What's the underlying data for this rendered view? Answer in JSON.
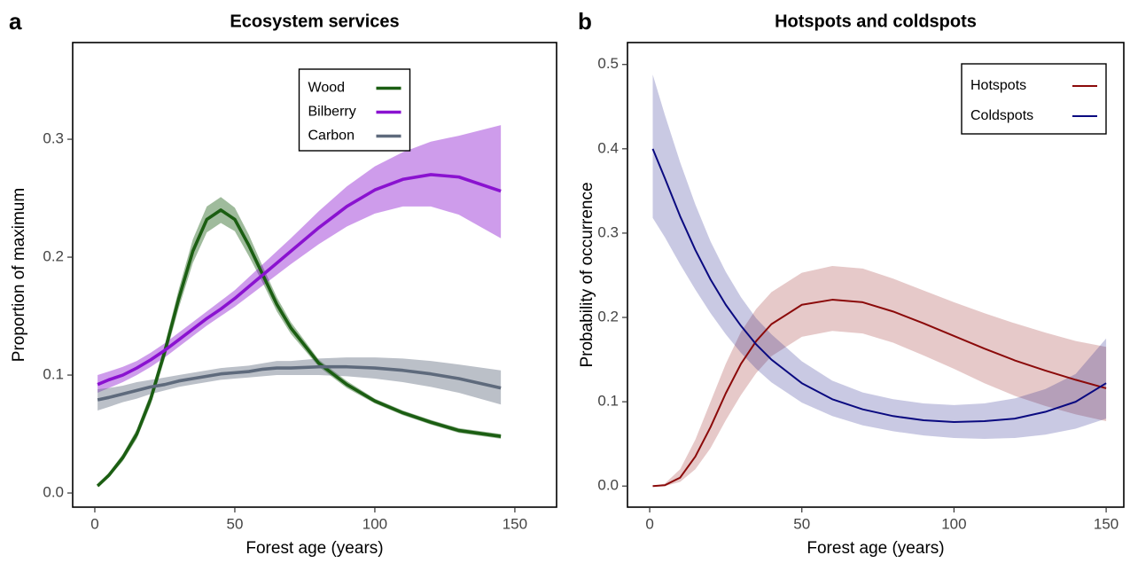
{
  "chart_data": [
    {
      "type": "line",
      "panel_label": "a",
      "title": "Ecosystem services",
      "x_label": "Forest age (years)",
      "y_label": "Proportion of maximum",
      "xlim": [
        -7.9,
        164.9
      ],
      "ylim": [
        -0.012,
        0.382
      ],
      "xticks": [
        0,
        50,
        100,
        150
      ],
      "yticks": [
        {
          "value": 0,
          "label": "0.0"
        },
        0.1,
        0.2,
        0.3
      ],
      "legend_position": "top",
      "x": [
        1,
        5,
        10,
        15,
        20,
        25,
        30,
        35,
        40,
        45,
        50,
        55,
        60,
        65,
        70,
        80,
        90,
        100,
        110,
        120,
        130,
        145
      ],
      "series": [
        {
          "name": "Wood",
          "color": "#1b5e12",
          "values": [
            0.006,
            0.015,
            0.03,
            0.05,
            0.08,
            0.12,
            0.165,
            0.205,
            0.232,
            0.24,
            0.232,
            0.21,
            0.185,
            0.16,
            0.14,
            0.11,
            0.092,
            0.078,
            0.068,
            0.06,
            0.053,
            0.048
          ],
          "lower": [
            0.005,
            0.013,
            0.027,
            0.046,
            0.075,
            0.114,
            0.157,
            0.195,
            0.221,
            0.229,
            0.222,
            0.201,
            0.178,
            0.154,
            0.135,
            0.107,
            0.089,
            0.076,
            0.066,
            0.058,
            0.051,
            0.046
          ],
          "upper": [
            0.007,
            0.017,
            0.033,
            0.054,
            0.085,
            0.126,
            0.173,
            0.215,
            0.243,
            0.251,
            0.242,
            0.219,
            0.192,
            0.166,
            0.145,
            0.113,
            0.095,
            0.08,
            0.07,
            0.062,
            0.055,
            0.05
          ]
        },
        {
          "name": "Bilberry",
          "color": "#8a12d0",
          "values": [
            0.092,
            0.096,
            0.1,
            0.106,
            0.113,
            0.121,
            0.13,
            0.139,
            0.148,
            0.156,
            0.165,
            0.175,
            0.185,
            0.195,
            0.205,
            0.225,
            0.243,
            0.257,
            0.266,
            0.27,
            0.268,
            0.256
          ],
          "lower": [
            0.085,
            0.089,
            0.094,
            0.1,
            0.107,
            0.115,
            0.124,
            0.133,
            0.142,
            0.15,
            0.158,
            0.167,
            0.176,
            0.185,
            0.194,
            0.211,
            0.226,
            0.237,
            0.243,
            0.243,
            0.236,
            0.216
          ],
          "upper": [
            0.1,
            0.103,
            0.107,
            0.112,
            0.119,
            0.127,
            0.136,
            0.145,
            0.154,
            0.163,
            0.172,
            0.183,
            0.194,
            0.205,
            0.216,
            0.239,
            0.26,
            0.277,
            0.289,
            0.298,
            0.303,
            0.312
          ]
        },
        {
          "name": "Carbon",
          "color": "#5e6a7c",
          "values": [
            0.079,
            0.081,
            0.084,
            0.087,
            0.09,
            0.092,
            0.095,
            0.097,
            0.099,
            0.101,
            0.102,
            0.103,
            0.105,
            0.106,
            0.106,
            0.107,
            0.107,
            0.106,
            0.104,
            0.101,
            0.097,
            0.089
          ],
          "lower": [
            0.07,
            0.073,
            0.077,
            0.08,
            0.084,
            0.087,
            0.09,
            0.092,
            0.094,
            0.096,
            0.097,
            0.098,
            0.099,
            0.1,
            0.1,
            0.1,
            0.099,
            0.097,
            0.094,
            0.09,
            0.085,
            0.075
          ],
          "upper": [
            0.088,
            0.089,
            0.091,
            0.094,
            0.096,
            0.098,
            0.1,
            0.102,
            0.104,
            0.106,
            0.107,
            0.108,
            0.11,
            0.112,
            0.112,
            0.114,
            0.115,
            0.115,
            0.114,
            0.112,
            0.109,
            0.104
          ]
        }
      ]
    },
    {
      "type": "line",
      "panel_label": "b",
      "title": "Hotspots and coldspots",
      "x_label": "Forest age (years)",
      "y_label": "Probability of occurrence",
      "xlim": [
        -7.3,
        155.8
      ],
      "ylim": [
        -0.025,
        0.526
      ],
      "xticks": [
        0,
        50,
        100,
        150
      ],
      "yticks": [
        {
          "value": 0,
          "label": "0.0"
        },
        0.1,
        0.2,
        0.3,
        0.4,
        0.5
      ],
      "legend_position": "top-right",
      "x": [
        1,
        5,
        10,
        15,
        20,
        25,
        30,
        35,
        40,
        50,
        60,
        70,
        80,
        90,
        100,
        110,
        120,
        130,
        140,
        150
      ],
      "series": [
        {
          "name": "Hotspots",
          "color": "#8b0a0a",
          "values": [
            0,
            0.001,
            0.01,
            0.035,
            0.07,
            0.11,
            0.145,
            0.172,
            0.192,
            0.215,
            0.221,
            0.218,
            0.207,
            0.193,
            0.178,
            0.163,
            0.149,
            0.137,
            0.126,
            0.116
          ],
          "lower": [
            0,
            0,
            0.005,
            0.02,
            0.045,
            0.078,
            0.108,
            0.134,
            0.154,
            0.177,
            0.184,
            0.181,
            0.17,
            0.155,
            0.139,
            0.122,
            0.107,
            0.095,
            0.085,
            0.077
          ],
          "upper": [
            0,
            0.003,
            0.02,
            0.055,
            0.1,
            0.145,
            0.183,
            0.21,
            0.23,
            0.253,
            0.261,
            0.258,
            0.246,
            0.232,
            0.218,
            0.205,
            0.193,
            0.182,
            0.172,
            0.165
          ]
        },
        {
          "name": "Coldspots",
          "color": "#0a0a80",
          "values": [
            0.4,
            0.365,
            0.32,
            0.28,
            0.245,
            0.215,
            0.19,
            0.168,
            0.15,
            0.122,
            0.103,
            0.091,
            0.083,
            0.078,
            0.076,
            0.077,
            0.08,
            0.088,
            0.1,
            0.122
          ],
          "lower": [
            0.318,
            0.295,
            0.263,
            0.233,
            0.205,
            0.18,
            0.158,
            0.139,
            0.123,
            0.099,
            0.083,
            0.072,
            0.065,
            0.06,
            0.057,
            0.056,
            0.057,
            0.061,
            0.068,
            0.08
          ],
          "upper": [
            0.488,
            0.44,
            0.384,
            0.334,
            0.29,
            0.254,
            0.224,
            0.199,
            0.18,
            0.148,
            0.125,
            0.111,
            0.103,
            0.098,
            0.096,
            0.098,
            0.104,
            0.115,
            0.133,
            0.175
          ]
        }
      ]
    }
  ]
}
